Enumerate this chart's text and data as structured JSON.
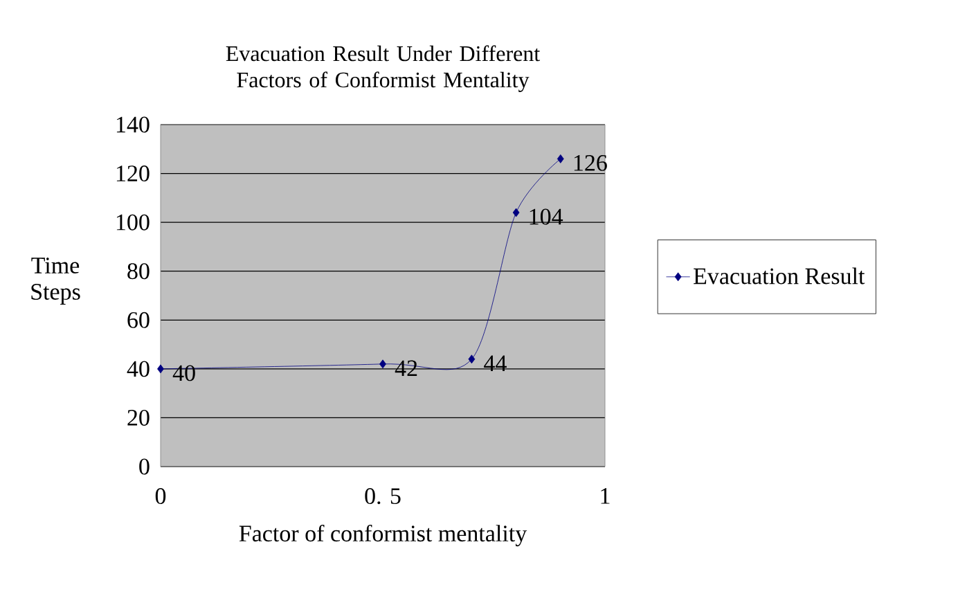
{
  "chart_data": {
    "type": "line",
    "title": "Evacuation Result Under Different Factors of Conformist Mentality",
    "xlabel": "Factor of conformist mentality",
    "ylabel": "Time Steps",
    "x": [
      0,
      0.5,
      0.7,
      0.8,
      0.9
    ],
    "series": [
      {
        "name": "Evacuation Result",
        "color": "#000080",
        "values": [
          40,
          42,
          44,
          104,
          126
        ]
      }
    ],
    "xlim": [
      0,
      1
    ],
    "xticks": [
      0,
      {
        "value": 0.5,
        "label": "0. 5"
      },
      1
    ],
    "ylim": [
      0,
      140
    ],
    "yticks": [
      0,
      20,
      40,
      60,
      80,
      100,
      120,
      140
    ],
    "grid": "y",
    "legend": "right",
    "marker": "diamond",
    "line_style": "solid",
    "data_labels": true
  }
}
